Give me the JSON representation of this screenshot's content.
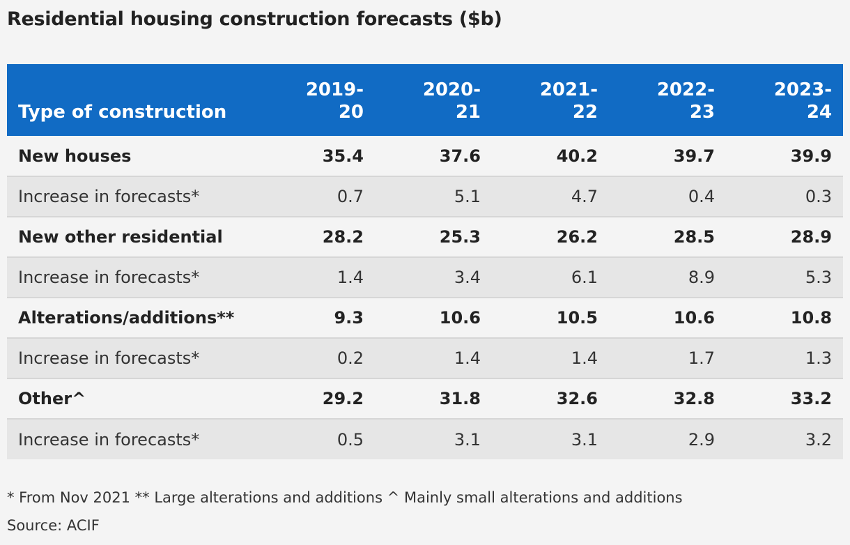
{
  "chart_data": {
    "type": "table",
    "title": "Residential housing construction forecasts ($b)",
    "columns": [
      "Type of construction",
      "2019-\n20",
      "2020-\n21",
      "2021-\n22",
      "2022-\n23",
      "2023-\n24"
    ],
    "rows": [
      {
        "label": "New houses",
        "bold": true,
        "values": [
          "35.4",
          "37.6",
          "40.2",
          "39.7",
          "39.9"
        ]
      },
      {
        "label": "Increase in forecasts*",
        "bold": false,
        "values": [
          "0.7",
          "5.1",
          "4.7",
          "0.4",
          "0.3"
        ]
      },
      {
        "label": "New other residential",
        "bold": true,
        "values": [
          "28.2",
          "25.3",
          "26.2",
          "28.5",
          "28.9"
        ]
      },
      {
        "label": "Increase in forecasts*",
        "bold": false,
        "values": [
          "1.4",
          "3.4",
          "6.1",
          "8.9",
          "5.3"
        ]
      },
      {
        "label": "Alterations/additions**",
        "bold": true,
        "values": [
          "9.3",
          "10.6",
          "10.5",
          "10.6",
          "10.8"
        ]
      },
      {
        "label": "Increase in forecasts*",
        "bold": false,
        "values": [
          "0.2",
          "1.4",
          "1.4",
          "1.7",
          "1.3"
        ]
      },
      {
        "label": "Other^",
        "bold": true,
        "values": [
          "29.2",
          "31.8",
          "32.6",
          "32.8",
          "33.2"
        ]
      },
      {
        "label": "Increase in forecasts*",
        "bold": false,
        "values": [
          "0.5",
          "3.1",
          "3.1",
          "2.9",
          "3.2"
        ]
      }
    ],
    "notes": "* From Nov 2021 ** Large alterations and additions ^ Mainly small alterations and additions",
    "source": "Source: ACIF"
  },
  "colors": {
    "header_background": "#116bc4",
    "header_text": "#ffffff",
    "row_light": "#f4f4f4",
    "row_shaded": "#e6e6e6"
  }
}
